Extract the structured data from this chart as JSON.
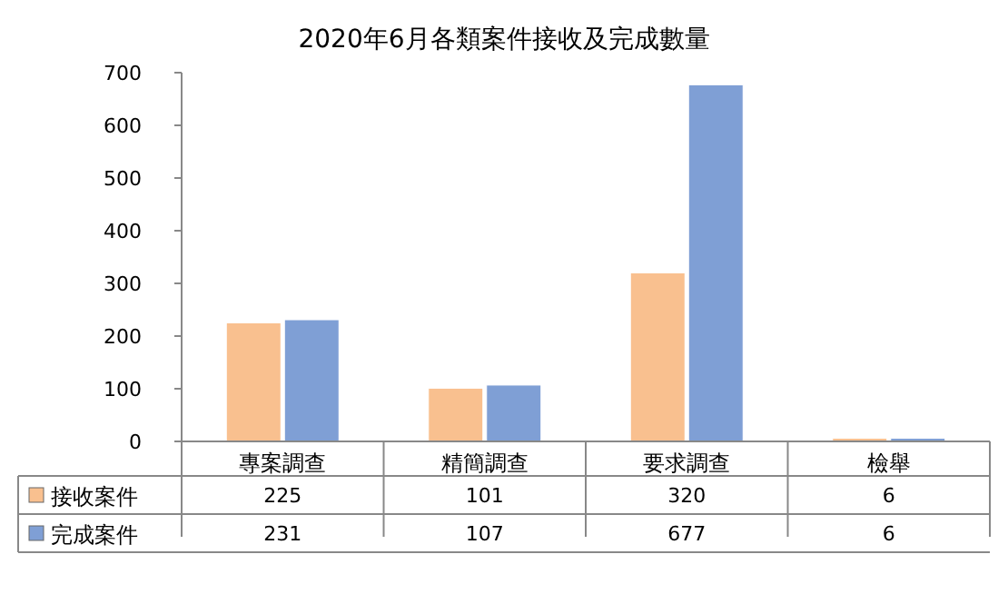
{
  "chart_data": {
    "type": "bar",
    "title": "2020年6月各類案件接收及完成數量",
    "categories": [
      "專案調查",
      "精簡調查",
      "要求調查",
      "檢舉"
    ],
    "series": [
      {
        "name": "接收案件",
        "color": "#f9c08f",
        "values": [
          225,
          101,
          320,
          6
        ]
      },
      {
        "name": "完成案件",
        "color": "#7f9fd5",
        "values": [
          231,
          107,
          677,
          6
        ]
      }
    ],
    "ylim": [
      0,
      700
    ],
    "yticks": [
      0,
      100,
      200,
      300,
      400,
      500,
      600,
      700
    ],
    "grid": false,
    "legend": "bottom left",
    "data_labels": true
  }
}
